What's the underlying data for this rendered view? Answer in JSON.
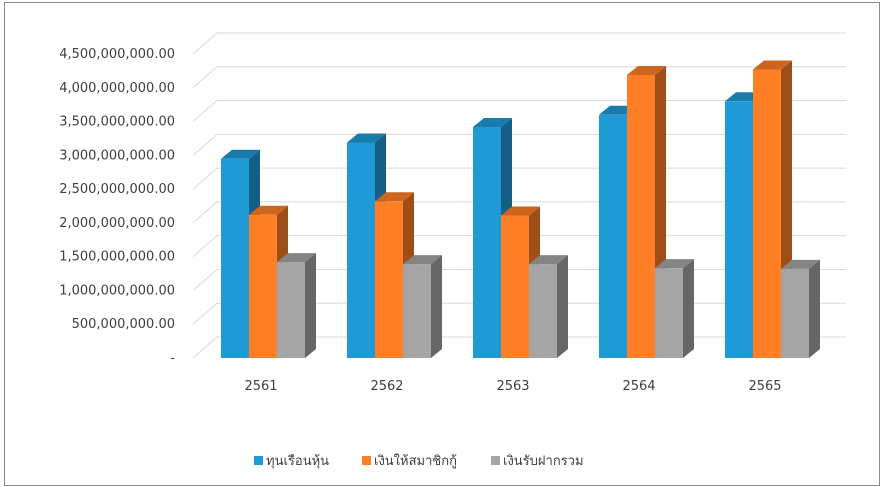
{
  "chart_data": {
    "type": "bar",
    "style": "3d-clustered-column",
    "categories": [
      "2561",
      "2562",
      "2563",
      "2564",
      "2565"
    ],
    "series": [
      {
        "name": "ทุนเรือนหุ้น",
        "color": "#1f9ad6",
        "values": [
          2950000000,
          3190000000,
          3420000000,
          3600000000,
          3800000000
        ]
      },
      {
        "name": "เงินให้สมาชิกกู้",
        "color": "#ff7f27",
        "values": [
          2120000000,
          2320000000,
          2110000000,
          4190000000,
          4270000000
        ]
      },
      {
        "name": "เงินรับฝากรวม",
        "color": "#a5a5a5",
        "values": [
          1420000000,
          1390000000,
          1390000000,
          1330000000,
          1320000000
        ]
      }
    ],
    "ylim": [
      0,
      4500000000
    ],
    "y_ticks": [
      "-",
      "500,000,000.00",
      "1,000,000,000.00",
      "1,500,000,000.00",
      "2,000,000,000.00",
      "2,500,000,000.00",
      "3,000,000,000.00",
      "3,500,000,000.00",
      "4,000,000,000.00",
      "4,500,000,000.00"
    ],
    "grid": true,
    "legend_position": "bottom",
    "title": "",
    "xlabel": "",
    "ylabel": ""
  }
}
